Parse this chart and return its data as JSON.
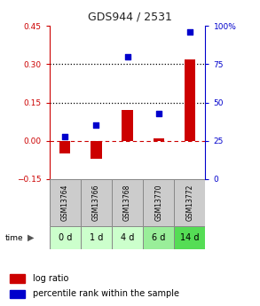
{
  "title": "GDS944 / 2531",
  "samples": [
    "GSM13764",
    "GSM13766",
    "GSM13768",
    "GSM13770",
    "GSM13772"
  ],
  "time_labels": [
    "0 d",
    "1 d",
    "4 d",
    "6 d",
    "14 d"
  ],
  "log_ratio": [
    -0.05,
    -0.07,
    0.12,
    0.01,
    0.32
  ],
  "percentile": [
    28,
    35,
    80,
    43,
    96
  ],
  "left_ylim": [
    -0.15,
    0.45
  ],
  "right_ylim": [
    0,
    100
  ],
  "left_yticks": [
    -0.15,
    0.0,
    0.15,
    0.3,
    0.45
  ],
  "right_yticks": [
    0,
    25,
    50,
    75,
    100
  ],
  "right_yticklabels": [
    "0",
    "25",
    "50",
    "75",
    "100%"
  ],
  "hlines": [
    0.15,
    0.3
  ],
  "bar_color": "#cc0000",
  "scatter_color": "#0000cc",
  "bar_width": 0.35,
  "dashed_line_color": "#cc0000",
  "grid_color": "#000000",
  "bg_color": "#ffffff",
  "plot_bg": "#ffffff",
  "sample_box_color": "#cccccc",
  "green_colors": [
    "#ccffcc",
    "#ccffcc",
    "#ccffcc",
    "#99ee99",
    "#55dd55"
  ],
  "legend_bar_label": "log ratio",
  "legend_scatter_label": "percentile rank within the sample",
  "title_color": "#222222",
  "left_tick_color": "#cc0000",
  "right_tick_color": "#0000cc",
  "spine_color": "#888888"
}
